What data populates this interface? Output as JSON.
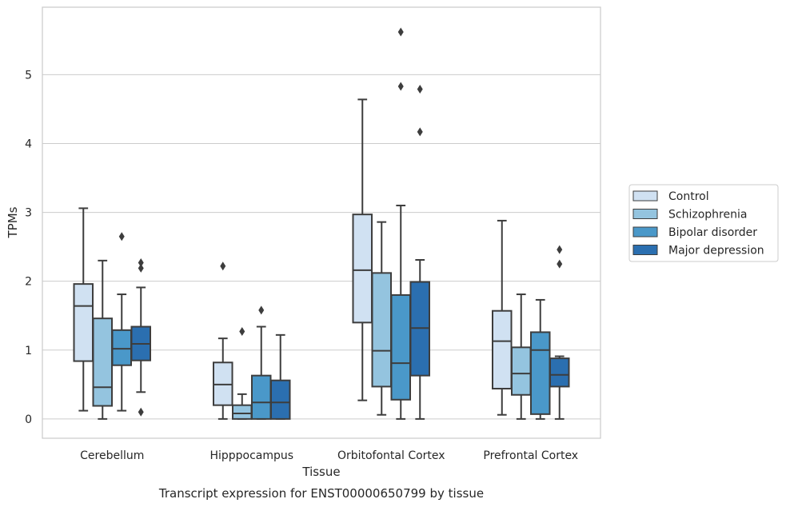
{
  "chart_data": {
    "type": "box",
    "caption": "Transcript expression for ENST00000650799 by tissue",
    "xlabel": "Tissue",
    "ylabel": "TPMs",
    "ylim": [
      -0.28,
      5.98
    ],
    "yticks": [
      0,
      1,
      2,
      3,
      4,
      5
    ],
    "grid": true,
    "legend_position": "right",
    "categories": [
      "Cerebellum",
      "Hipppocampus",
      "Orbitofontal Cortex",
      "Prefrontal Cortex"
    ],
    "series": [
      {
        "name": "Control",
        "color": "#d0e1f2",
        "boxes": [
          {
            "whislo": 0.12,
            "q1": 0.84,
            "med": 1.64,
            "q3": 1.96,
            "whishi": 3.06,
            "fliers": []
          },
          {
            "whislo": 0.0,
            "q1": 0.2,
            "med": 0.5,
            "q3": 0.82,
            "whishi": 1.17,
            "fliers": [
              2.22
            ]
          },
          {
            "whislo": 0.27,
            "q1": 1.4,
            "med": 2.16,
            "q3": 2.97,
            "whishi": 4.64,
            "fliers": []
          },
          {
            "whislo": 0.06,
            "q1": 0.44,
            "med": 1.13,
            "q3": 1.57,
            "whishi": 2.88,
            "fliers": []
          }
        ]
      },
      {
        "name": "Schizophrenia",
        "color": "#94c4df",
        "boxes": [
          {
            "whislo": 0.0,
            "q1": 0.19,
            "med": 0.46,
            "q3": 1.46,
            "whishi": 2.3,
            "fliers": []
          },
          {
            "whislo": 0.0,
            "q1": 0.0,
            "med": 0.08,
            "q3": 0.2,
            "whishi": 0.36,
            "fliers": [
              1.27
            ]
          },
          {
            "whislo": 0.06,
            "q1": 0.47,
            "med": 0.99,
            "q3": 2.12,
            "whishi": 2.86,
            "fliers": []
          },
          {
            "whislo": 0.0,
            "q1": 0.35,
            "med": 0.66,
            "q3": 1.04,
            "whishi": 1.81,
            "fliers": []
          }
        ]
      },
      {
        "name": "Bipolar disorder",
        "color": "#4a98c9",
        "boxes": [
          {
            "whislo": 0.12,
            "q1": 0.78,
            "med": 1.02,
            "q3": 1.29,
            "whishi": 1.81,
            "fliers": [
              2.65
            ]
          },
          {
            "whislo": 0.0,
            "q1": 0.0,
            "med": 0.24,
            "q3": 0.63,
            "whishi": 1.34,
            "fliers": [
              1.58
            ]
          },
          {
            "whislo": 0.0,
            "q1": 0.28,
            "med": 0.81,
            "q3": 1.8,
            "whishi": 3.1,
            "fliers": [
              4.83,
              5.62
            ]
          },
          {
            "whislo": 0.0,
            "q1": 0.07,
            "med": 1.0,
            "q3": 1.26,
            "whishi": 1.73,
            "fliers": []
          }
        ]
      },
      {
        "name": "Major depression",
        "color": "#2b6fb0",
        "boxes": [
          {
            "whislo": 0.39,
            "q1": 0.85,
            "med": 1.09,
            "q3": 1.34,
            "whishi": 1.91,
            "fliers": [
              2.27,
              2.19,
              0.1
            ]
          },
          {
            "whislo": 0.0,
            "q1": 0.0,
            "med": 0.24,
            "q3": 0.56,
            "whishi": 1.22,
            "fliers": []
          },
          {
            "whislo": 0.0,
            "q1": 0.63,
            "med": 1.32,
            "q3": 1.99,
            "whishi": 2.31,
            "fliers": [
              4.79,
              4.17
            ]
          },
          {
            "whislo": 0.0,
            "q1": 0.47,
            "med": 0.64,
            "q3": 0.88,
            "whishi": 0.91,
            "fliers": [
              2.46,
              2.25
            ]
          }
        ]
      }
    ]
  }
}
